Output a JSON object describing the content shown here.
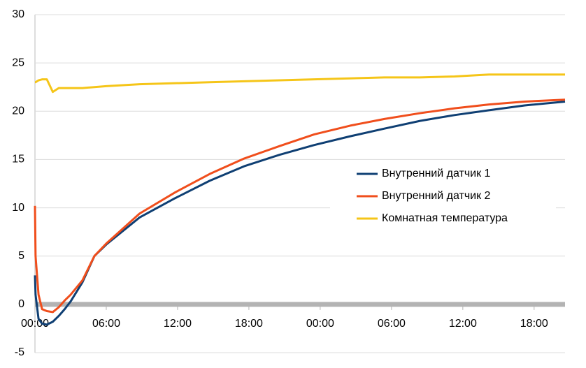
{
  "chart_data": {
    "type": "line",
    "x": [
      0,
      0.05,
      0.3,
      0.6,
      1,
      1.5,
      2,
      2.5,
      3,
      4,
      5,
      6,
      8.8,
      11.8,
      14.7,
      17.6,
      20.6,
      23.5,
      26.5,
      29.4,
      32.4,
      35.3,
      38.2,
      41.2,
      44.6
    ],
    "series": [
      {
        "name": "Внутренний датчик 1",
        "color": "#0f3f73",
        "values": [
          3,
          1,
          -1.5,
          -2,
          -2.1,
          -1.8,
          -1.2,
          -0.5,
          0.3,
          2.3,
          5,
          6.2,
          9,
          11,
          12.8,
          14.3,
          15.5,
          16.5,
          17.4,
          18.2,
          19,
          19.6,
          20.1,
          20.6,
          21
        ]
      },
      {
        "name": "Внутренний датчик 2",
        "color": "#f04e1c",
        "values": [
          10.2,
          5,
          1,
          -0.5,
          -0.7,
          -0.8,
          -0.3,
          0.4,
          1,
          2.5,
          5,
          6.3,
          9.4,
          11.6,
          13.5,
          15.1,
          16.4,
          17.6,
          18.5,
          19.2,
          19.8,
          20.3,
          20.7,
          21,
          21.2
        ]
      },
      {
        "name": "Комнатная температура",
        "color": "#f5c518",
        "values": [
          23,
          23,
          23.2,
          23.3,
          23.3,
          22,
          22.4,
          22.4,
          22.4,
          22.4,
          22.5,
          22.6,
          22.8,
          22.9,
          23,
          23.1,
          23.2,
          23.3,
          23.4,
          23.5,
          23.5,
          23.6,
          23.8,
          23.8,
          23.8
        ]
      }
    ],
    "xlim": [
      0,
      44.6
    ],
    "xticks": [
      {
        "value": 0,
        "label": "00:00"
      },
      {
        "value": 6,
        "label": "06:00"
      },
      {
        "value": 12,
        "label": "12:00"
      },
      {
        "value": 18,
        "label": "18:00"
      },
      {
        "value": 24,
        "label": "00:00"
      },
      {
        "value": 30,
        "label": "06:00"
      },
      {
        "value": 36,
        "label": "12:00"
      },
      {
        "value": 42,
        "label": "18:00"
      }
    ],
    "ylim": [
      -5,
      30
    ],
    "yticks": [
      -5,
      0,
      5,
      10,
      15,
      20,
      25,
      30
    ],
    "grid": true,
    "legend": "right"
  }
}
